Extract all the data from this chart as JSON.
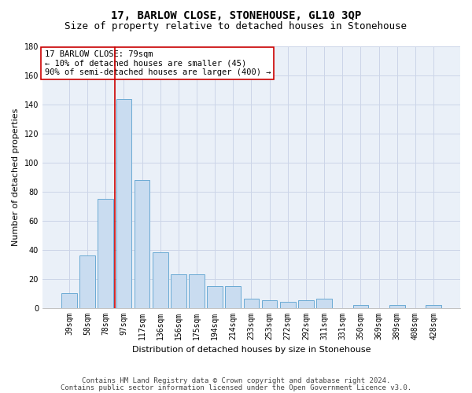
{
  "title1": "17, BARLOW CLOSE, STONEHOUSE, GL10 3QP",
  "title2": "Size of property relative to detached houses in Stonehouse",
  "xlabel": "Distribution of detached houses by size in Stonehouse",
  "ylabel": "Number of detached properties",
  "categories": [
    "39sqm",
    "58sqm",
    "78sqm",
    "97sqm",
    "117sqm",
    "136sqm",
    "156sqm",
    "175sqm",
    "194sqm",
    "214sqm",
    "233sqm",
    "253sqm",
    "272sqm",
    "292sqm",
    "311sqm",
    "331sqm",
    "350sqm",
    "369sqm",
    "389sqm",
    "408sqm",
    "428sqm"
  ],
  "values": [
    10,
    36,
    75,
    144,
    88,
    38,
    23,
    23,
    15,
    15,
    6,
    5,
    4,
    5,
    6,
    0,
    2,
    0,
    2,
    0,
    2
  ],
  "bar_color": "#c9dcf0",
  "bar_edge_color": "#6aaad4",
  "vline_x_index": 2.5,
  "vline_color": "#cc0000",
  "ylim": [
    0,
    180
  ],
  "yticks": [
    0,
    20,
    40,
    60,
    80,
    100,
    120,
    140,
    160,
    180
  ],
  "annotation_line1": "17 BARLOW CLOSE: 79sqm",
  "annotation_line2": "← 10% of detached houses are smaller (45)",
  "annotation_line3": "90% of semi-detached houses are larger (400) →",
  "annotation_box_color": "#ffffff",
  "annotation_box_edge": "#cc0000",
  "footnote1": "Contains HM Land Registry data © Crown copyright and database right 2024.",
  "footnote2": "Contains public sector information licensed under the Open Government Licence v3.0.",
  "grid_color": "#ccd5e8",
  "bg_color": "#eaf0f8",
  "title_fontsize": 10,
  "subtitle_fontsize": 9,
  "ylabel_fontsize": 8,
  "xlabel_fontsize": 8,
  "tick_fontsize": 7,
  "annot_fontsize": 7.5,
  "footnote_fontsize": 6.5
}
